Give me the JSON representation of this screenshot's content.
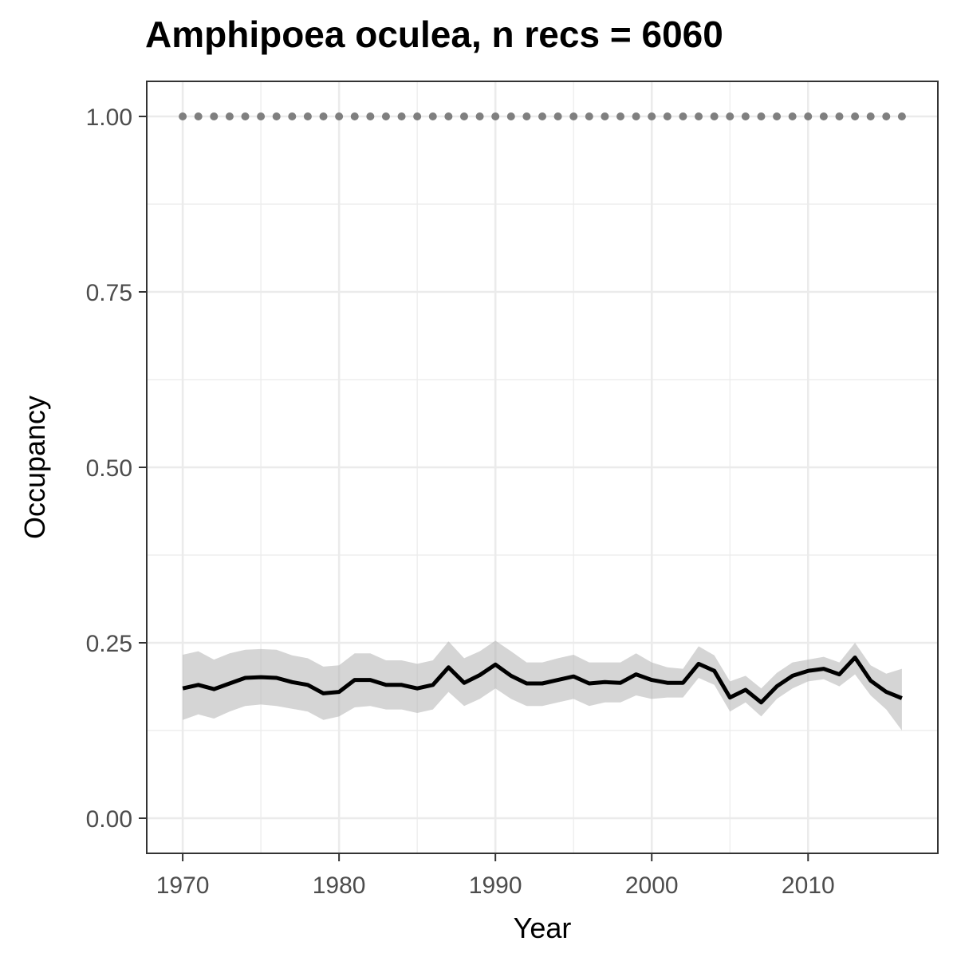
{
  "chart_data": {
    "type": "line",
    "title": "Amphipoea oculea, n recs = 6060",
    "xlabel": "Year",
    "ylabel": "Occupancy",
    "xlim": [
      1967.7,
      2018.3
    ],
    "ylim": [
      -0.05,
      1.05
    ],
    "x_ticks": [
      1970,
      1980,
      1990,
      2000,
      2010
    ],
    "x_tick_labels": [
      "1970",
      "1980",
      "1990",
      "2000",
      "2010"
    ],
    "y_ticks": [
      0,
      0.25,
      0.5,
      0.75,
      1.0
    ],
    "y_tick_labels": [
      "0.00",
      "0.25",
      "0.50",
      "0.75",
      "1.00"
    ],
    "grid": true,
    "legend": "none",
    "colors": {
      "line": "#000000",
      "ribbon": "#b3b3b3",
      "points": "#7f7f7f",
      "grid": "#ebebeb",
      "panel_border": "#333333"
    },
    "x": [
      1970,
      1971,
      1972,
      1973,
      1974,
      1975,
      1976,
      1977,
      1978,
      1979,
      1980,
      1981,
      1982,
      1983,
      1984,
      1985,
      1986,
      1987,
      1988,
      1989,
      1990,
      1991,
      1992,
      1993,
      1994,
      1995,
      1996,
      1997,
      1998,
      1999,
      2000,
      2001,
      2002,
      2003,
      2004,
      2005,
      2006,
      2007,
      2008,
      2009,
      2010,
      2011,
      2012,
      2013,
      2014,
      2015,
      2016
    ],
    "series": [
      {
        "values": [
          0.185,
          0.19,
          0.184,
          0.192,
          0.2,
          0.201,
          0.2,
          0.194,
          0.19,
          0.178,
          0.18,
          0.197,
          0.197,
          0.19,
          0.19,
          0.185,
          0.19,
          0.215,
          0.193,
          0.204,
          0.219,
          0.203,
          0.192,
          0.192,
          0.197,
          0.202,
          0.192,
          0.194,
          0.193,
          0.205,
          0.197,
          0.193,
          0.193,
          0.22,
          0.21,
          0.172,
          0.183,
          0.165,
          0.188,
          0.203,
          0.21,
          0.213,
          0.205,
          0.229,
          0.196,
          0.18,
          0.171
        ],
        "lower": [
          0.14,
          0.148,
          0.142,
          0.152,
          0.16,
          0.162,
          0.16,
          0.156,
          0.152,
          0.14,
          0.145,
          0.158,
          0.16,
          0.155,
          0.155,
          0.15,
          0.155,
          0.18,
          0.16,
          0.17,
          0.185,
          0.17,
          0.16,
          0.16,
          0.165,
          0.17,
          0.16,
          0.165,
          0.165,
          0.175,
          0.17,
          0.172,
          0.172,
          0.2,
          0.19,
          0.152,
          0.165,
          0.145,
          0.17,
          0.185,
          0.195,
          0.198,
          0.188,
          0.205,
          0.175,
          0.155,
          0.125
        ],
        "upper": [
          0.233,
          0.238,
          0.226,
          0.235,
          0.24,
          0.241,
          0.24,
          0.232,
          0.228,
          0.216,
          0.218,
          0.235,
          0.235,
          0.225,
          0.225,
          0.22,
          0.225,
          0.252,
          0.228,
          0.238,
          0.253,
          0.238,
          0.222,
          0.222,
          0.228,
          0.233,
          0.222,
          0.222,
          0.222,
          0.235,
          0.222,
          0.215,
          0.213,
          0.245,
          0.232,
          0.195,
          0.203,
          0.185,
          0.207,
          0.222,
          0.226,
          0.23,
          0.222,
          0.25,
          0.218,
          0.206,
          0.213
        ]
      },
      {
        "values": [
          1,
          1,
          1,
          1,
          1,
          1,
          1,
          1,
          1,
          1,
          1,
          1,
          1,
          1,
          1,
          1,
          1,
          1,
          1,
          1,
          1,
          1,
          1,
          1,
          1,
          1,
          1,
          1,
          1,
          1,
          1,
          1,
          1,
          1,
          1,
          1,
          1,
          1,
          1,
          1,
          1,
          1,
          1,
          1,
          1,
          1,
          1
        ]
      }
    ]
  }
}
